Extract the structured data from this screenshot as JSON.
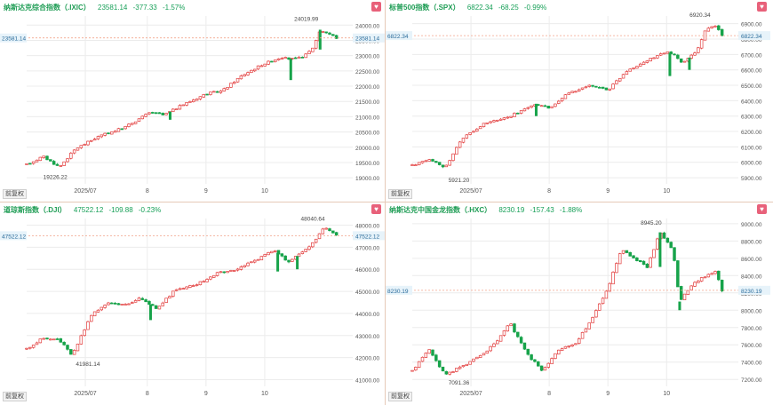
{
  "colors": {
    "up": "#e23b3b",
    "down": "#17a34a",
    "ref": "#f2a38a",
    "tag_bg": "#e7f3fa",
    "tag_fg": "#2a6b9a",
    "axis": "#555555"
  },
  "footer_button": "前复权",
  "panels": [
    {
      "name": "纳斯达克综合指数（.IXIC）",
      "price": "23581.14",
      "change": "-377.33",
      "pct": "-1.57%",
      "chart_data": {
        "type": "candlestick",
        "y_ticks": [
          "24000.00",
          "23500.00",
          "23000.00",
          "22500.00",
          "22000.00",
          "21500.00",
          "21000.00",
          "20500.00",
          "20000.00",
          "19500.00",
          "19000.00"
        ],
        "y_tick_values": [
          24000,
          23500,
          23000,
          22500,
          22000,
          21500,
          21000,
          20500,
          20000,
          19500,
          19000
        ],
        "ylim": [
          18800,
          24300
        ],
        "x_ticks": [
          "2025/07",
          "8",
          "9",
          "10"
        ],
        "x_tick_frac": [
          0.18,
          0.37,
          0.55,
          0.73
        ],
        "current_label": "23581.14",
        "current": 23581.14,
        "high_label": "24019.99",
        "high": 24019.99,
        "high_frac": 0.9,
        "low_label": "19226.22",
        "low": 19226.22,
        "low_frac": 0.04,
        "path": [
          [
            0,
            19430
          ],
          [
            0.05,
            19700
          ],
          [
            0.1,
            19350
          ],
          [
            0.15,
            19950
          ],
          [
            0.22,
            20350
          ],
          [
            0.3,
            20650
          ],
          [
            0.38,
            21150
          ],
          [
            0.42,
            21050
          ],
          [
            0.48,
            21400
          ],
          [
            0.55,
            21750
          ],
          [
            0.6,
            21850
          ],
          [
            0.66,
            22350
          ],
          [
            0.72,
            22700
          ],
          [
            0.78,
            22950
          ],
          [
            0.8,
            22900
          ],
          [
            0.83,
            22900
          ],
          [
            0.86,
            23050
          ],
          [
            0.88,
            23300
          ],
          [
            0.9,
            23850
          ],
          [
            0.93,
            23700
          ],
          [
            0.95,
            23581
          ]
        ],
        "dips": [
          [
            0.44,
            20900
          ],
          [
            0.81,
            22200
          ],
          [
            0.9,
            23200
          ]
        ]
      }
    },
    {
      "name": "标普500指数（.SPX）",
      "price": "6822.34",
      "change": "-68.25",
      "pct": "-0.99%",
      "chart_data": {
        "type": "candlestick",
        "y_ticks": [
          "6900.00",
          "6800.00",
          "6700.00",
          "6600.00",
          "6500.00",
          "6400.00",
          "6300.00",
          "6200.00",
          "6100.00",
          "6000.00",
          "5900.00"
        ],
        "y_tick_values": [
          6900,
          6800,
          6700,
          6600,
          6500,
          6400,
          6300,
          6200,
          6100,
          6000,
          5900
        ],
        "ylim": [
          5860,
          6950
        ],
        "x_ticks": [
          "2025/07",
          "8",
          "9",
          "10"
        ],
        "x_tick_frac": [
          0.18,
          0.42,
          0.6,
          0.78
        ],
        "current_label": "6822.34",
        "current": 6822.34,
        "high_label": "6920.34",
        "high": 6920.34,
        "high_frac": 0.92,
        "low_label": "5921.20",
        "low": 5921.2,
        "low_frac": 0.1,
        "path": [
          [
            0,
            5980
          ],
          [
            0.05,
            6020
          ],
          [
            0.1,
            5960
          ],
          [
            0.15,
            6150
          ],
          [
            0.22,
            6250
          ],
          [
            0.3,
            6300
          ],
          [
            0.38,
            6380
          ],
          [
            0.42,
            6350
          ],
          [
            0.48,
            6450
          ],
          [
            0.55,
            6500
          ],
          [
            0.6,
            6470
          ],
          [
            0.66,
            6600
          ],
          [
            0.72,
            6660
          ],
          [
            0.78,
            6720
          ],
          [
            0.8,
            6700
          ],
          [
            0.83,
            6640
          ],
          [
            0.86,
            6700
          ],
          [
            0.88,
            6750
          ],
          [
            0.9,
            6860
          ],
          [
            0.93,
            6890
          ],
          [
            0.95,
            6822
          ]
        ],
        "dips": [
          [
            0.38,
            6300
          ],
          [
            0.79,
            6560
          ],
          [
            0.85,
            6600
          ]
        ]
      }
    },
    {
      "name": "道琼斯指数（.DJI）",
      "price": "47522.12",
      "change": "-109.88",
      "pct": "-0.23%",
      "chart_data": {
        "type": "candlestick",
        "y_ticks": [
          "48000.00",
          "47000.00",
          "46000.00",
          "45000.00",
          "44000.00",
          "43000.00",
          "42000.00",
          "41000.00"
        ],
        "y_tick_values": [
          48000,
          47000,
          46000,
          45000,
          44000,
          43000,
          42000,
          41000
        ],
        "ylim": [
          40700,
          48300
        ],
        "x_ticks": [
          "2025/07",
          "8",
          "9",
          "10"
        ],
        "x_tick_frac": [
          0.18,
          0.37,
          0.55,
          0.73
        ],
        "current_label": "47522.12",
        "current": 47522.12,
        "high_label": "48040.64",
        "high": 48040.64,
        "high_frac": 0.92,
        "low_label": "41981.14",
        "low": 41981.14,
        "low_frac": 0.14,
        "path": [
          [
            0,
            42400
          ],
          [
            0.05,
            42900
          ],
          [
            0.1,
            42800
          ],
          [
            0.14,
            42100
          ],
          [
            0.2,
            44000
          ],
          [
            0.25,
            44500
          ],
          [
            0.3,
            44400
          ],
          [
            0.35,
            44700
          ],
          [
            0.4,
            44200
          ],
          [
            0.45,
            45000
          ],
          [
            0.52,
            45300
          ],
          [
            0.58,
            45800
          ],
          [
            0.64,
            46000
          ],
          [
            0.7,
            46400
          ],
          [
            0.76,
            46900
          ],
          [
            0.8,
            46300
          ],
          [
            0.84,
            46700
          ],
          [
            0.88,
            47200
          ],
          [
            0.91,
            47900
          ],
          [
            0.95,
            47522
          ]
        ],
        "dips": [
          [
            0.38,
            43700
          ],
          [
            0.77,
            45900
          ],
          [
            0.83,
            46000
          ]
        ]
      }
    },
    {
      "name": "纳斯达克中国金龙指数（.HXC）",
      "price": "8230.19",
      "change": "-157.43",
      "pct": "-1.88%",
      "chart_data": {
        "type": "candlestick",
        "y_ticks": [
          "9000.00",
          "8800.00",
          "8600.00",
          "8400.00",
          "8200.00",
          "8000.00",
          "7800.00",
          "7600.00",
          "7400.00",
          "7200.00"
        ],
        "y_tick_values": [
          9000,
          8800,
          8600,
          8400,
          8200,
          8000,
          7800,
          7600,
          7400,
          7200
        ],
        "ylim": [
          7120,
          9060
        ],
        "x_ticks": [
          "2025/07",
          "8",
          "9",
          "10"
        ],
        "x_tick_frac": [
          0.18,
          0.42,
          0.6,
          0.78
        ],
        "current_label": "8230.19",
        "current": 8230.19,
        "high_label": "8945.20",
        "high": 8945.2,
        "high_frac": 0.77,
        "low_label": "7091.36",
        "low": 7091.36,
        "low_frac": 0.1,
        "path": [
          [
            0,
            7300
          ],
          [
            0.05,
            7550
          ],
          [
            0.1,
            7250
          ],
          [
            0.15,
            7350
          ],
          [
            0.2,
            7450
          ],
          [
            0.25,
            7600
          ],
          [
            0.3,
            7850
          ],
          [
            0.35,
            7500
          ],
          [
            0.4,
            7300
          ],
          [
            0.45,
            7550
          ],
          [
            0.5,
            7600
          ],
          [
            0.55,
            7900
          ],
          [
            0.6,
            8250
          ],
          [
            0.64,
            8700
          ],
          [
            0.68,
            8600
          ],
          [
            0.72,
            8500
          ],
          [
            0.76,
            8900
          ],
          [
            0.8,
            8700
          ],
          [
            0.82,
            8100
          ],
          [
            0.86,
            8300
          ],
          [
            0.9,
            8400
          ],
          [
            0.93,
            8450
          ],
          [
            0.95,
            8230
          ]
        ],
        "dips": [
          [
            0.82,
            8000
          ],
          [
            0.76,
            8500
          ]
        ]
      }
    }
  ]
}
